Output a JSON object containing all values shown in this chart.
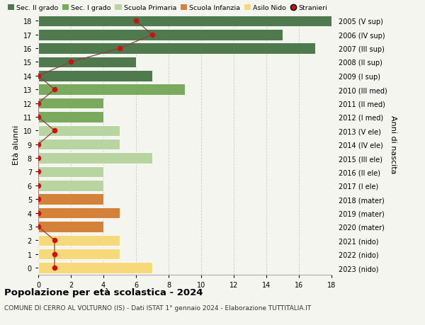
{
  "ages": [
    18,
    17,
    16,
    15,
    14,
    13,
    12,
    11,
    10,
    9,
    8,
    7,
    6,
    5,
    4,
    3,
    2,
    1,
    0
  ],
  "right_labels": [
    "2005 (V sup)",
    "2006 (IV sup)",
    "2007 (III sup)",
    "2008 (II sup)",
    "2009 (I sup)",
    "2010 (III med)",
    "2011 (II med)",
    "2012 (I med)",
    "2013 (V ele)",
    "2014 (IV ele)",
    "2015 (III ele)",
    "2016 (II ele)",
    "2017 (I ele)",
    "2018 (mater)",
    "2019 (mater)",
    "2020 (mater)",
    "2021 (nido)",
    "2022 (nido)",
    "2023 (nido)"
  ],
  "bar_values": [
    18,
    15,
    17,
    6,
    7,
    9,
    4,
    4,
    5,
    5,
    7,
    4,
    4,
    4,
    5,
    4,
    5,
    5,
    7
  ],
  "bar_colors": [
    "#4e7a4e",
    "#4e7a4e",
    "#4e7a4e",
    "#4e7a4e",
    "#4e7a4e",
    "#7aaa5e",
    "#7aaa5e",
    "#7aaa5e",
    "#b8d4a0",
    "#b8d4a0",
    "#b8d4a0",
    "#b8d4a0",
    "#b8d4a0",
    "#d4813a",
    "#d4813a",
    "#d4813a",
    "#f5d97a",
    "#f5d97a",
    "#f5d97a"
  ],
  "stranieri_values": [
    6,
    7,
    5,
    2,
    0,
    1,
    0,
    0,
    1,
    0,
    0,
    0,
    0,
    0,
    0,
    0,
    1,
    1,
    1
  ],
  "stranieri_color": "#cc1111",
  "stranieri_line_color": "#8b4040",
  "xlim": [
    0,
    18
  ],
  "xticks": [
    0,
    2,
    4,
    6,
    8,
    10,
    12,
    14,
    16,
    18
  ],
  "ylabel_left": "Età alunni",
  "ylabel_right": "Anni di nascita",
  "legend_labels": [
    "Sec. II grado",
    "Sec. I grado",
    "Scuola Primaria",
    "Scuola Infanzia",
    "Asilo Nido",
    "Stranieri"
  ],
  "legend_colors": [
    "#4e7a4e",
    "#7aaa5e",
    "#b8d4a0",
    "#d4813a",
    "#f5d97a",
    "#cc1111"
  ],
  "title": "Popolazione per età scolastica - 2024",
  "subtitle": "COMUNE DI CERRO AL VOLTURNO (IS) - Dati ISTAT 1° gennaio 2024 - Elaborazione TUTTITALIA.IT",
  "bg_color": "#f5f5f0",
  "bar_height": 0.8,
  "grid_color": "#cccccc"
}
